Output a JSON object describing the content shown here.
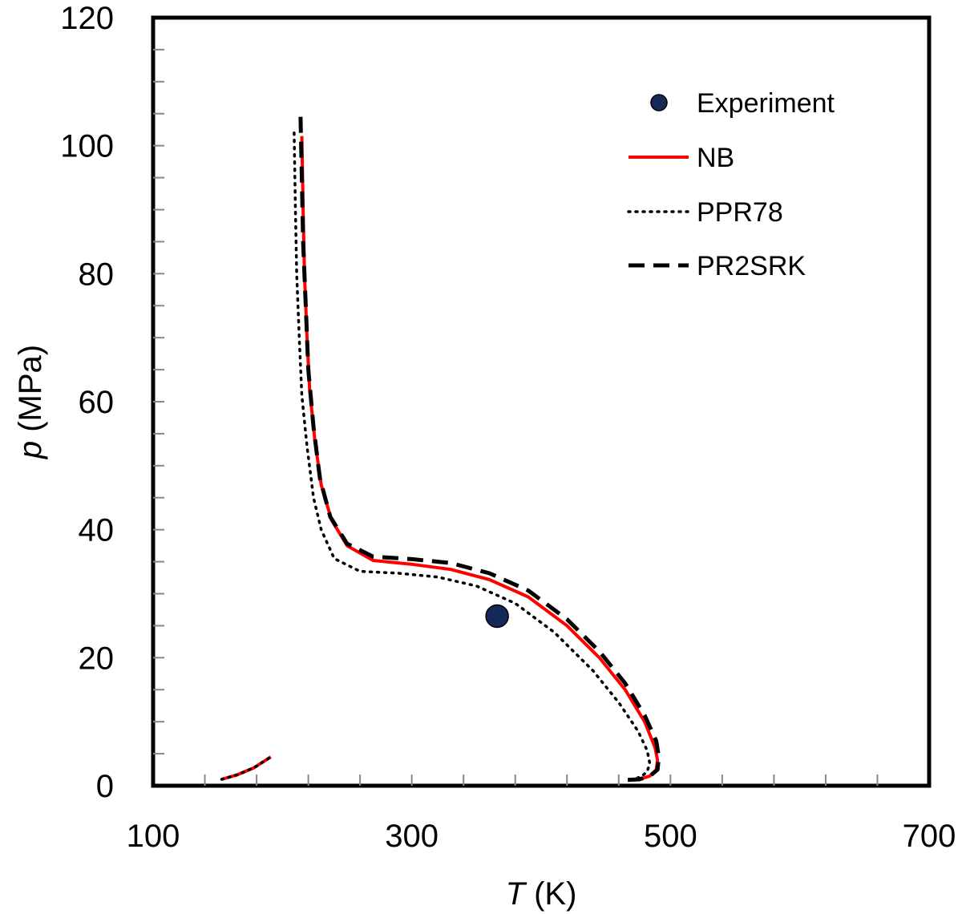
{
  "chart_data": {
    "type": "line",
    "xlabel_symbol": "T",
    "xlabel_unit": " (K)",
    "ylabel_symbol": "p",
    "ylabel_unit": " (MPa)",
    "xlim": [
      100,
      700
    ],
    "ylim": [
      0,
      120
    ],
    "x_ticks": [
      100,
      300,
      500,
      700
    ],
    "y_ticks": [
      0,
      20,
      40,
      60,
      80,
      100,
      120
    ],
    "x_tick_labels": [
      "100",
      "300",
      "500",
      "700"
    ],
    "y_tick_labels": [
      "0",
      "20",
      "40",
      "60",
      "80",
      "100",
      "120"
    ],
    "x_minor_step": 40,
    "y_minor_step": 5,
    "grid": false,
    "legend_position": "top-right",
    "colors": {
      "experiment_fill": "#16285a",
      "nb": "#ff0000",
      "ppr78": "#000000",
      "pr2srk": "#000000"
    },
    "series": [
      {
        "name": "Experiment",
        "kind": "scatter",
        "points": [
          [
            366,
            26.5
          ]
        ]
      },
      {
        "name": "NB",
        "kind": "line",
        "style": "solid",
        "segments": [
          [
            [
              153,
              1.0
            ],
            [
              165,
              1.7
            ],
            [
              178,
              2.8
            ],
            [
              191,
              4.5
            ]
          ],
          [
            [
              215,
              101.5
            ],
            [
              216,
              90
            ],
            [
              217,
              80
            ],
            [
              219,
              70
            ],
            [
              221,
              62
            ],
            [
              225,
              54
            ],
            [
              230,
              47
            ],
            [
              238,
              41.5
            ],
            [
              250,
              37.5
            ],
            [
              270,
              35.2
            ],
            [
              300,
              34.6
            ],
            [
              330,
              33.8
            ],
            [
              360,
              32.2
            ],
            [
              390,
              29.5
            ],
            [
              420,
              25.0
            ],
            [
              445,
              20.0
            ],
            [
              465,
              15.0
            ],
            [
              480,
              10.0
            ],
            [
              488,
              6.0
            ],
            [
              490,
              4.0
            ],
            [
              489,
              2.5
            ],
            [
              484,
              1.5
            ],
            [
              476,
              1.0
            ],
            [
              467,
              0.9
            ]
          ]
        ]
      },
      {
        "name": "PPR78",
        "kind": "line",
        "style": "dotted",
        "segments": [
          [
            [
              153,
              1.0
            ],
            [
              165,
              1.7
            ],
            [
              178,
              2.8
            ],
            [
              191,
              4.5
            ]
          ],
          [
            [
              209,
              102
            ],
            [
              210,
              90
            ],
            [
              211,
              80
            ],
            [
              213,
              70
            ],
            [
              215,
              61
            ],
            [
              219,
              53
            ],
            [
              224,
              45
            ],
            [
              230,
              40
            ],
            [
              240,
              35.5
            ],
            [
              260,
              33.5
            ],
            [
              290,
              33.2
            ],
            [
              320,
              32.6
            ],
            [
              350,
              31.2
            ],
            [
              380,
              28.5
            ],
            [
              410,
              24.0
            ],
            [
              440,
              18.0
            ],
            [
              460,
              13.0
            ],
            [
              475,
              8.5
            ],
            [
              482,
              5.5
            ],
            [
              484,
              3.5
            ],
            [
              482,
              2.2
            ],
            [
              478,
              1.5
            ],
            [
              472,
              1.0
            ],
            [
              467,
              0.8
            ]
          ]
        ]
      },
      {
        "name": "PR2SRK",
        "kind": "line",
        "style": "dashed",
        "segments": [
          [
            [
              214,
              104.5
            ],
            [
              215,
              95
            ],
            [
              216,
              85
            ],
            [
              218,
              75
            ],
            [
              220,
              65
            ],
            [
              224,
              56
            ],
            [
              229,
              48
            ],
            [
              237,
              42
            ],
            [
              250,
              37.8
            ],
            [
              270,
              35.8
            ],
            [
              300,
              35.4
            ],
            [
              330,
              34.8
            ],
            [
              360,
              33.2
            ],
            [
              390,
              30.5
            ],
            [
              420,
              26.0
            ],
            [
              445,
              21.0
            ],
            [
              465,
              16.0
            ],
            [
              480,
              11.0
            ],
            [
              489,
              7.0
            ],
            [
              491,
              4.5
            ],
            [
              490,
              2.5
            ],
            [
              484,
              1.5
            ],
            [
              476,
              1.0
            ],
            [
              467,
              0.9
            ]
          ]
        ]
      }
    ]
  }
}
